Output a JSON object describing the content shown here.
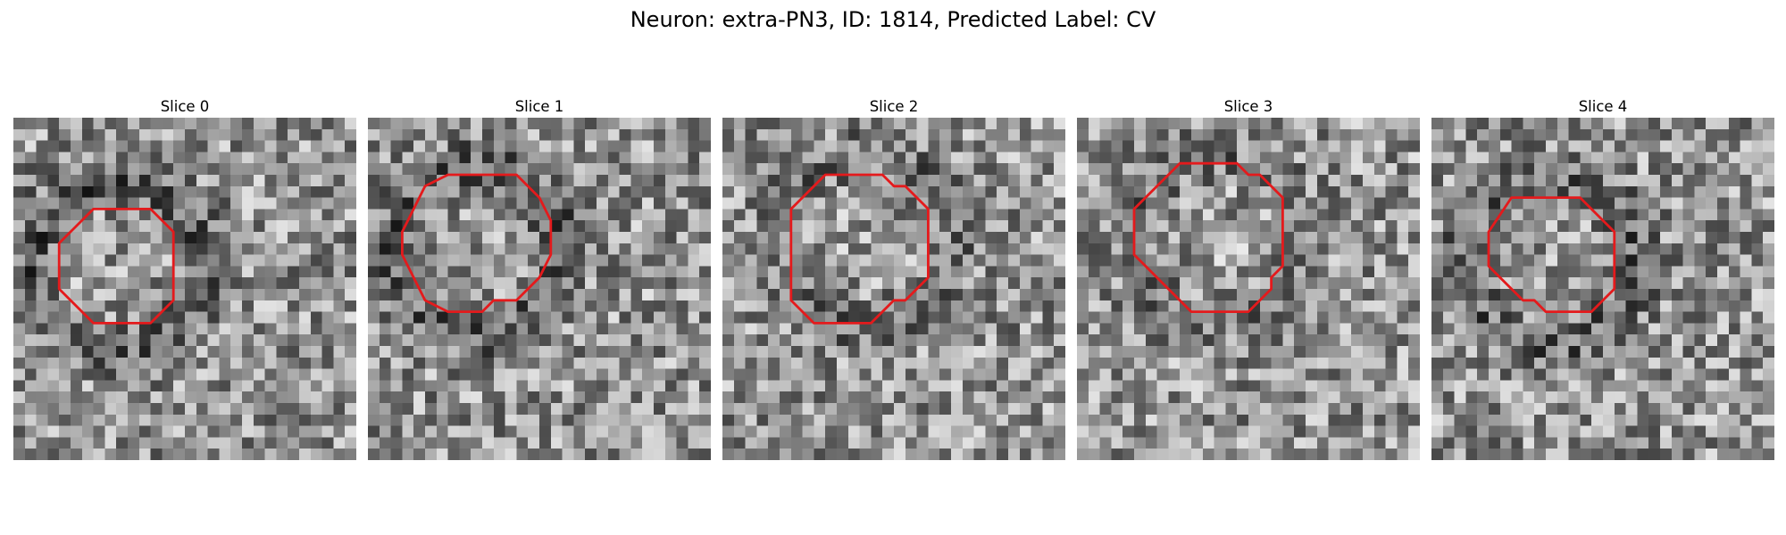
{
  "figure": {
    "title": "Neuron: extra-PN3, ID: 1814, Predicted Label: CV"
  },
  "panels": [
    {
      "title": "Slice 0",
      "seed": 11,
      "dark_ring": 1.0,
      "contour": [
        [
          7,
          8
        ],
        [
          12,
          8
        ],
        [
          14,
          10
        ],
        [
          14,
          16
        ],
        [
          12,
          18
        ],
        [
          7,
          18
        ],
        [
          4,
          15
        ],
        [
          4,
          11
        ]
      ]
    },
    {
      "title": "Slice 1",
      "seed": 23,
      "dark_ring": 0.9,
      "contour": [
        [
          7,
          5
        ],
        [
          13,
          5
        ],
        [
          15,
          7
        ],
        [
          16,
          9
        ],
        [
          16,
          12
        ],
        [
          15,
          14
        ],
        [
          14,
          15
        ],
        [
          13,
          16
        ],
        [
          11,
          16
        ],
        [
          10,
          17
        ],
        [
          7,
          17
        ],
        [
          5,
          16
        ],
        [
          4,
          14
        ],
        [
          3,
          12
        ],
        [
          3,
          10
        ],
        [
          4,
          8
        ],
        [
          5,
          6
        ]
      ]
    },
    {
      "title": "Slice 2",
      "seed": 37,
      "dark_ring": 0.6,
      "contour": [
        [
          9,
          5
        ],
        [
          14,
          5
        ],
        [
          15,
          6
        ],
        [
          16,
          6
        ],
        [
          18,
          8
        ],
        [
          18,
          14
        ],
        [
          16,
          16
        ],
        [
          15,
          16
        ],
        [
          13,
          18
        ],
        [
          8,
          18
        ],
        [
          6,
          16
        ],
        [
          6,
          8
        ],
        [
          8,
          6
        ]
      ]
    },
    {
      "title": "Slice 3",
      "seed": 51,
      "dark_ring": 0.5,
      "contour": [
        [
          9,
          4
        ],
        [
          14,
          4
        ],
        [
          15,
          5
        ],
        [
          16,
          5
        ],
        [
          18,
          7
        ],
        [
          18,
          13
        ],
        [
          17,
          14
        ],
        [
          17,
          15
        ],
        [
          15,
          17
        ],
        [
          10,
          17
        ],
        [
          7,
          14
        ],
        [
          6,
          13
        ],
        [
          5,
          12
        ],
        [
          5,
          8
        ]
      ]
    },
    {
      "title": "Slice 4",
      "seed": 67,
      "dark_ring": 0.8,
      "contour": [
        [
          7,
          7
        ],
        [
          13,
          7
        ],
        [
          15,
          9
        ],
        [
          16,
          10
        ],
        [
          16,
          15
        ],
        [
          14,
          17
        ],
        [
          10,
          17
        ],
        [
          9,
          16
        ],
        [
          8,
          16
        ],
        [
          6,
          14
        ],
        [
          5,
          13
        ],
        [
          5,
          10
        ]
      ]
    }
  ],
  "style": {
    "contour_color": "#e41a1c",
    "grid_size": 30
  }
}
